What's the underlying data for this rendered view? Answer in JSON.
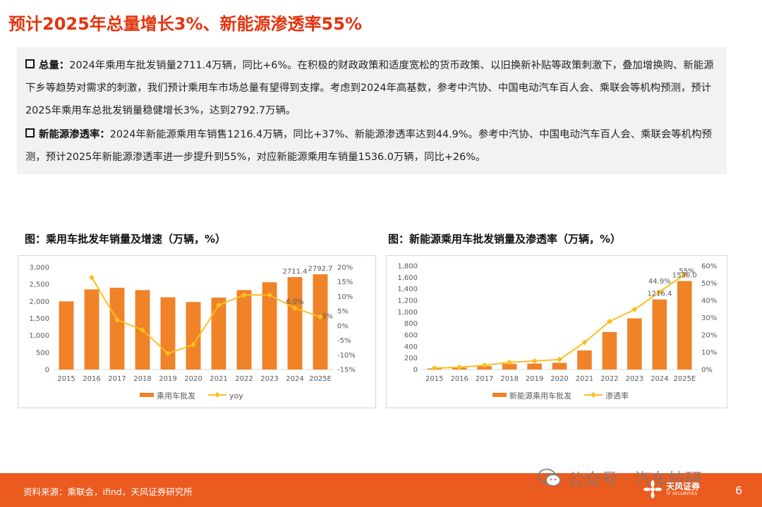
{
  "title": "预计2025年总量增长3%、新能源渗透率55%",
  "summary": {
    "p1_label": "总量：",
    "p1_text": "2024年乘用车批发销量2711.4万辆，同比+6%。在积极的财政政策和适度宽松的货币政策、以旧换新补贴等政策刺激下，叠加增换购、新能源下乡等趋势对需求的刺激，我们预计乘用车市场总量有望得到支撑。考虑到2024年高基数，参考中汽协、中国电动汽车百人会、乘联会等机构预测，预计2025年乘用车总批发销量稳健增长3%，达到2792.7万辆。",
    "p2_label": "新能源渗透率：",
    "p2_text": "2024年新能源乘用车销售1216.4万辆，同比+37%、新能源渗透率达到44.9%。参考中汽协、中国电动汽车百人会、乘联会等机构预测，预计2025年新能源渗透率进一步提升到55%，对应新能源乘用车销量1536.0万辆，同比+26%。"
  },
  "colors": {
    "bar": "#f08228",
    "line": "#fbbf1f",
    "title": "#e4330e",
    "footer": "#eb5a1e"
  },
  "chart_data": [
    {
      "type": "bar",
      "title": "图：乘用车批发年销量及增速（万辆，%）",
      "categories": [
        "2015",
        "2016",
        "2017",
        "2018",
        "2019",
        "2020",
        "2021",
        "2022",
        "2023",
        "2024",
        "2025E"
      ],
      "series": [
        {
          "name": "乘用车批发",
          "type": "bar",
          "axis": "left",
          "values": [
            2000,
            2350,
            2400,
            2330,
            2120,
            1980,
            2110,
            2330,
            2560,
            2711.4,
            2792.7
          ]
        },
        {
          "name": "yoy",
          "type": "line",
          "axis": "right",
          "values": [
            null,
            16.5,
            2.0,
            -1.5,
            -9.5,
            -6.5,
            7.0,
            10.5,
            10.5,
            6.0,
            3.0
          ]
        }
      ],
      "ylim_left": [
        0,
        3000
      ],
      "yticks_left": [
        "0",
        "500",
        "1,000",
        "1,500",
        "2,000",
        "2,500",
        "3,000"
      ],
      "ylim_right": [
        -15,
        20
      ],
      "yticks_right": [
        "-15%",
        "-10%",
        "-5%",
        "0%",
        "5%",
        "10%",
        "15%",
        "20%"
      ],
      "data_labels": {
        "bar_2024": "2711.4",
        "bar_2025E": "2792.7",
        "line_2024": "6.0%",
        "line_2025E": "3%"
      },
      "legend": "bottom"
    },
    {
      "type": "bar",
      "title": "图：新能源乘用车批发销量及渗透率（万辆，%）",
      "categories": [
        "2015",
        "2016",
        "2017",
        "2018",
        "2019",
        "2020",
        "2021",
        "2022",
        "2023",
        "2024",
        "2025E"
      ],
      "series": [
        {
          "name": "新能源乘用车批发",
          "type": "bar",
          "axis": "left",
          "values": [
            18,
            33,
            58,
            98,
            103,
            117,
            331,
            651,
            888,
            1216.4,
            1536.0
          ]
        },
        {
          "name": "渗透率",
          "type": "line",
          "axis": "right",
          "values": [
            0.8,
            1.3,
            2.4,
            4.2,
            4.9,
            5.8,
            15.7,
            27.8,
            34.7,
            44.9,
            55.0
          ]
        }
      ],
      "ylim_left": [
        0,
        1800
      ],
      "yticks_left": [
        "0",
        "200",
        "400",
        "600",
        "800",
        "1,000",
        "1,200",
        "1,400",
        "1,600",
        "1,800"
      ],
      "ylim_right": [
        0,
        60
      ],
      "yticks_right": [
        "0%",
        "10%",
        "20%",
        "30%",
        "40%",
        "50%",
        "60%"
      ],
      "data_labels": {
        "bar_2024": "1216.4",
        "bar_2025E": "1536.0",
        "line_2024": "44.9%",
        "line_2025E": "55%"
      },
      "legend": "bottom"
    }
  ],
  "footer": {
    "source": "资料来源：乘联会，ifind，天风证券研究所",
    "watermark": "公众号 · 汽车技研",
    "brand_name": "天风证券",
    "brand_sub": "TF SECURITIES",
    "page": "6"
  }
}
